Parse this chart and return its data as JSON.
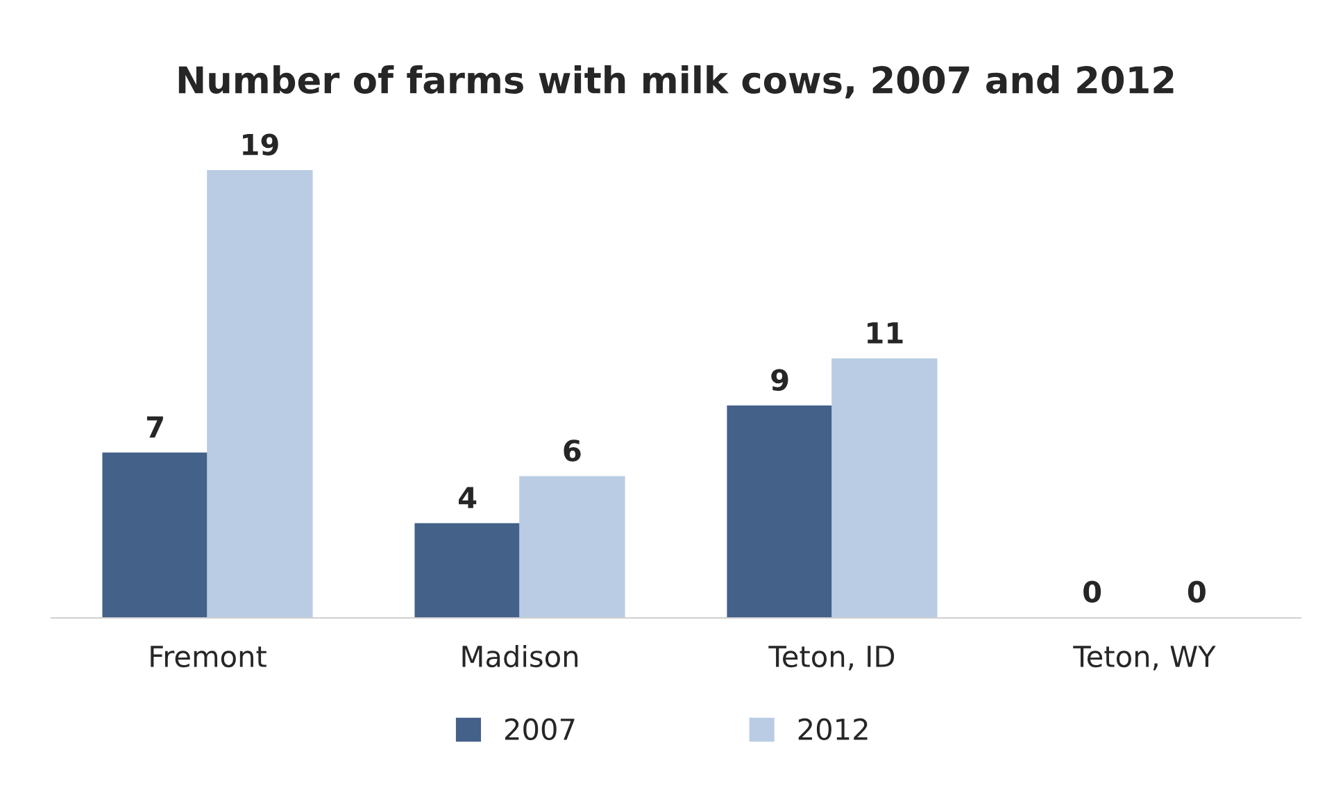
{
  "chart_data": {
    "type": "bar",
    "title": "Number of farms with milk cows, 2007 and 2012",
    "categories": [
      "Fremont",
      "Madison",
      "Teton, ID",
      "Teton, WY"
    ],
    "series": [
      {
        "name": "2007",
        "color": "#44618a",
        "values": [
          7,
          4,
          9,
          0
        ]
      },
      {
        "name": "2012",
        "color": "#b9cce4",
        "values": [
          19,
          6,
          11,
          0
        ]
      }
    ],
    "data_labels": true,
    "legend": "bottom",
    "grid": false
  }
}
